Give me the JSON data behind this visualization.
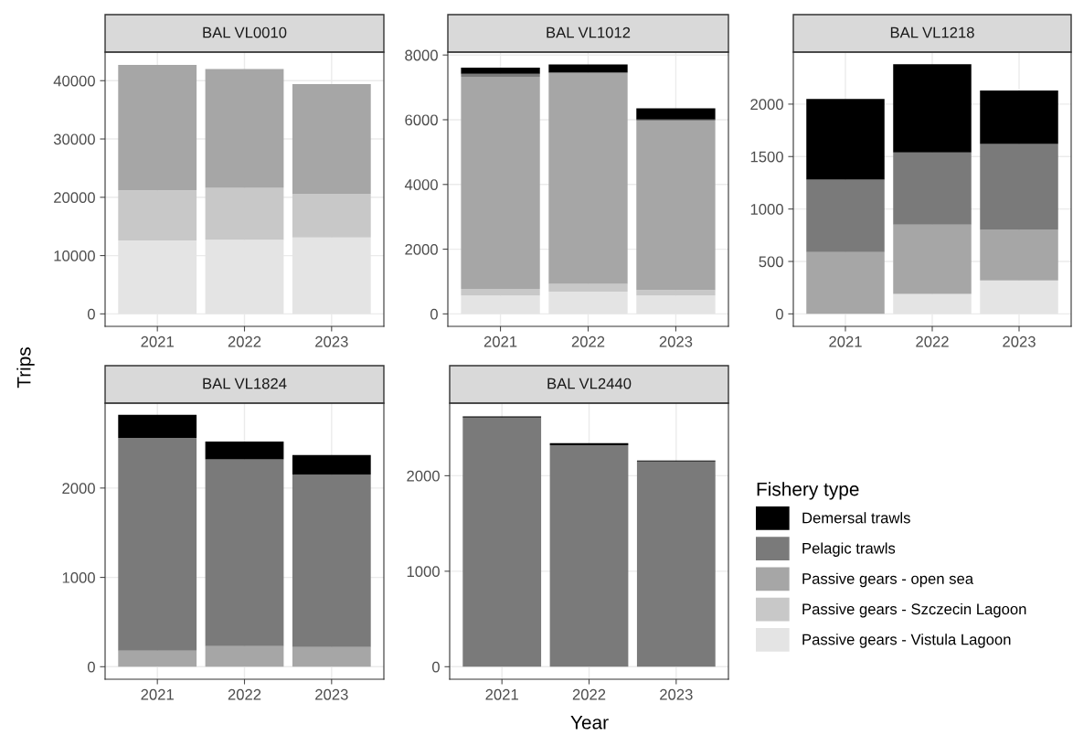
{
  "chart_data": [
    {
      "type": "bar",
      "title": "BAL VL0010",
      "ylabel": "Trips",
      "stacked": true,
      "categories": [
        "2021",
        "2022",
        "2023"
      ],
      "ylim": [
        -2140,
        44900
      ],
      "yticks": [
        0,
        10000,
        20000,
        30000,
        40000
      ],
      "grid": true,
      "series": [
        {
          "color": "#e4e4e4",
          "values": [
            12600,
            12700,
            13100
          ]
        },
        {
          "color": "#c8c8c8",
          "values": [
            8600,
            8900,
            7500
          ]
        },
        {
          "color": "#a6a6a6",
          "values": [
            21500,
            20400,
            18800
          ]
        },
        {
          "color": "#7a7a7a",
          "values": [
            0,
            0,
            0
          ]
        },
        {
          "color": "#000000",
          "values": [
            0,
            0,
            0
          ]
        }
      ]
    },
    {
      "type": "bar",
      "title": "BAL VL1012",
      "stacked": true,
      "categories": [
        "2021",
        "2022",
        "2023"
      ],
      "ylim": [
        -385,
        8090
      ],
      "yticks": [
        0,
        2000,
        4000,
        6000,
        8000
      ],
      "grid": true,
      "series": [
        {
          "color": "#e4e4e4",
          "values": [
            570,
            690,
            570
          ]
        },
        {
          "color": "#c8c8c8",
          "values": [
            200,
            240,
            170
          ]
        },
        {
          "color": "#a6a6a6",
          "values": [
            6560,
            6510,
            5230
          ]
        },
        {
          "color": "#7a7a7a",
          "values": [
            90,
            20,
            40
          ]
        },
        {
          "color": "#000000",
          "values": [
            190,
            250,
            340
          ]
        }
      ]
    },
    {
      "type": "bar",
      "title": "BAL VL1218",
      "stacked": true,
      "categories": [
        "2021",
        "2022",
        "2023"
      ],
      "ylim": [
        -119,
        2496
      ],
      "yticks": [
        0,
        500,
        1000,
        1500,
        2000
      ],
      "grid": true,
      "series": [
        {
          "color": "#e4e4e4",
          "values": [
            0,
            190,
            320
          ]
        },
        {
          "color": "#c8c8c8",
          "values": [
            0,
            0,
            0
          ]
        },
        {
          "color": "#a6a6a6",
          "values": [
            590,
            660,
            480
          ]
        },
        {
          "color": "#7a7a7a",
          "values": [
            690,
            690,
            820
          ]
        },
        {
          "color": "#000000",
          "values": [
            770,
            840,
            510
          ]
        }
      ]
    },
    {
      "type": "bar",
      "title": "BAL VL1824",
      "stacked": true,
      "categories": [
        "2021",
        "2022",
        "2023"
      ],
      "ylim": [
        -140,
        2950
      ],
      "yticks": [
        0,
        1000,
        2000
      ],
      "grid": true,
      "series": [
        {
          "color": "#e4e4e4",
          "values": [
            0,
            0,
            0
          ]
        },
        {
          "color": "#c8c8c8",
          "values": [
            0,
            0,
            0
          ]
        },
        {
          "color": "#a6a6a6",
          "values": [
            180,
            230,
            220
          ]
        },
        {
          "color": "#7a7a7a",
          "values": [
            2380,
            2090,
            1930
          ]
        },
        {
          "color": "#000000",
          "values": [
            260,
            200,
            220
          ]
        }
      ]
    },
    {
      "type": "bar",
      "title": "BAL VL2440",
      "xlabel": "Year",
      "legend_title": "Fishery type",
      "stacked": true,
      "categories": [
        "2021",
        "2022",
        "2023"
      ],
      "ylim": [
        -131,
        2760
      ],
      "yticks": [
        0,
        1000,
        2000
      ],
      "grid": true,
      "legend": "right",
      "series": [
        {
          "name": "Passive gears - Vistula Lagoon",
          "color": "#e4e4e4",
          "values": [
            0,
            0,
            0
          ]
        },
        {
          "name": "Passive gears - Szczecin Lagoon",
          "color": "#c8c8c8",
          "values": [
            0,
            0,
            0
          ]
        },
        {
          "name": "Passive gears - open sea",
          "color": "#a6a6a6",
          "values": [
            0,
            0,
            0
          ]
        },
        {
          "name": "Pelagic trawls",
          "color": "#7a7a7a",
          "values": [
            2610,
            2320,
            2150
          ]
        },
        {
          "name": "Demersal trawls",
          "color": "#000000",
          "values": [
            10,
            20,
            10
          ]
        }
      ]
    }
  ]
}
